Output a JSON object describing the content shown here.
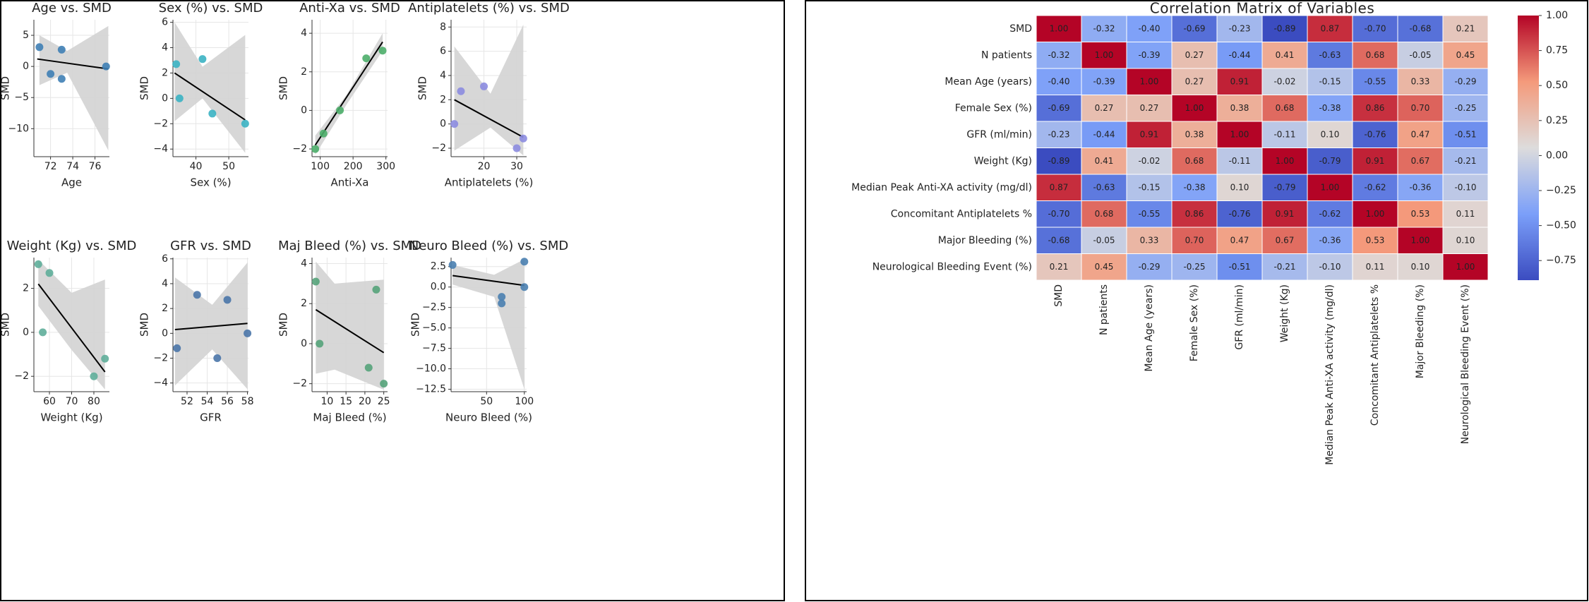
{
  "chart_data": [
    {
      "type": "scatter",
      "title": "Age vs. SMD",
      "x_label": "Age",
      "y_label": "SMD",
      "color": "#3f7fb5",
      "grid": true,
      "x": [
        71,
        72,
        73,
        73,
        77
      ],
      "values": [
        3.1,
        -1.2,
        2.7,
        -2,
        0
      ],
      "xlim": [
        70.5,
        77.3
      ],
      "xticks": [
        72,
        74,
        76
      ],
      "ylim": [
        -14.5,
        7.5
      ],
      "yticks": [
        5,
        0,
        {
          "value": -5,
          "label": "−5"
        },
        {
          "value": -10,
          "label": "−10"
        }
      ],
      "trend": {
        "x": [
          70.8,
          77.2
        ],
        "y": [
          1.2,
          -0.4
        ]
      },
      "band": {
        "x": [
          71,
          73.5,
          77.2
        ],
        "lower": [
          -3,
          -1,
          -13.5
        ],
        "upper": [
          5,
          2.5,
          6.5
        ]
      }
    },
    {
      "type": "scatter",
      "title": "Sex (%) vs. SMD",
      "x_label": "Sex (%)",
      "y_label": "SMD",
      "color": "#3bb3c3",
      "grid": true,
      "x": [
        34,
        35,
        42,
        45,
        55
      ],
      "values": [
        2.7,
        0,
        3.1,
        -1.2,
        -2
      ],
      "xlim": [
        33,
        56
      ],
      "xticks": [
        40,
        50
      ],
      "ylim": [
        -4.6,
        6.2
      ],
      "yticks": [
        {
          "value": -4,
          "label": "−4"
        },
        {
          "value": -2,
          "label": "−2"
        },
        0,
        2,
        4,
        6
      ],
      "trend": {
        "x": [
          33.5,
          55
        ],
        "y": [
          2,
          -1.7
        ]
      },
      "band": {
        "x": [
          33.5,
          42,
          55
        ],
        "lower": [
          -1.8,
          0,
          -4.3
        ],
        "upper": [
          6,
          2.5,
          5
        ]
      }
    },
    {
      "type": "scatter",
      "title": "Anti-Xa vs. SMD",
      "x_label": "Anti-Xa",
      "y_label": "SMD",
      "color": "#4cae6a",
      "grid": true,
      "x": [
        85,
        110,
        160,
        240,
        290
      ],
      "values": [
        -2,
        -1.2,
        0,
        2.7,
        3.1
      ],
      "xlim": [
        75,
        305
      ],
      "xticks": [
        100,
        200,
        300
      ],
      "ylim": [
        -2.4,
        4.7
      ],
      "yticks": [
        {
          "value": -2,
          "label": "−2"
        },
        0,
        2,
        4
      ],
      "trend": {
        "x": [
          85,
          290
        ],
        "y": [
          -1.8,
          3.55
        ]
      },
      "band": {
        "x": [
          85,
          180,
          290
        ],
        "lower": [
          -2.3,
          0.3,
          3.1
        ],
        "upper": [
          -1.3,
          0.8,
          4
        ]
      }
    },
    {
      "type": "scatter",
      "title": "Antiplatelets (%) vs. SMD",
      "x_label": "Antiplatelets (%)",
      "y_label": "SMD",
      "color": "#8c8ce0",
      "grid": true,
      "x": [
        11,
        13,
        20,
        30,
        32
      ],
      "values": [
        0,
        2.7,
        3.1,
        -2,
        -1.2
      ],
      "xlim": [
        10,
        33
      ],
      "xticks": [
        20,
        30
      ],
      "ylim": [
        -2.7,
        8.6
      ],
      "yticks": [
        {
          "value": -2,
          "label": "−2"
        },
        0,
        2,
        4,
        6,
        8
      ],
      "trend": {
        "x": [
          11,
          32
        ],
        "y": [
          2,
          -1.1
        ]
      },
      "band": {
        "x": [
          11,
          22,
          32
        ],
        "lower": [
          -2.2,
          -0.3,
          -2.6
        ],
        "upper": [
          6.4,
          2.5,
          8.2
        ]
      }
    },
    {
      "type": "scatter",
      "title": "Weight (Kg) vs. SMD",
      "x_label": "Weight (Kg)",
      "y_label": "SMD",
      "color": "#5fae9a",
      "grid": true,
      "x": [
        55,
        57,
        60,
        80,
        85
      ],
      "values": [
        3.1,
        0,
        2.7,
        -2,
        -1.2
      ],
      "xlim": [
        53,
        87
      ],
      "xticks": [
        60,
        70,
        80
      ],
      "ylim": [
        -2.7,
        3.4
      ],
      "yticks": [
        {
          "value": -2,
          "label": "−2"
        },
        0,
        2
      ],
      "trend": {
        "x": [
          55,
          85
        ],
        "y": [
          2.2,
          -1.8
        ]
      },
      "band": {
        "x": [
          55,
          70,
          85
        ],
        "lower": [
          1.2,
          -0.8,
          -2.6
        ],
        "upper": [
          3.3,
          1.8,
          2.4
        ]
      }
    },
    {
      "type": "scatter",
      "title": "GFR vs. SMD",
      "x_label": "GFR",
      "y_label": "SMD",
      "color": "#4a76a8",
      "grid": true,
      "x": [
        51,
        53,
        55,
        56,
        58
      ],
      "values": [
        -1.2,
        3.1,
        -2,
        2.7,
        0
      ],
      "xlim": [
        50.6,
        58.1
      ],
      "xticks": [
        52,
        54,
        56,
        58
      ],
      "ylim": [
        -4.7,
        6.1
      ],
      "yticks": [
        {
          "value": -4,
          "label": "−4"
        },
        {
          "value": -2,
          "label": "−2"
        },
        0,
        2,
        4,
        6
      ],
      "trend": {
        "x": [
          50.8,
          58
        ],
        "y": [
          0.3,
          0.8
        ]
      },
      "band": {
        "x": [
          50.8,
          54.5,
          58
        ],
        "lower": [
          -4.2,
          -1.3,
          -4.5
        ],
        "upper": [
          4.5,
          2.3,
          5.7
        ]
      }
    },
    {
      "type": "scatter",
      "title": "Maj Bleed (%) vs. SMD",
      "x_label": "Maj Bleed (%)",
      "y_label": "SMD",
      "color": "#55a37a",
      "grid": true,
      "x": [
        7,
        8,
        21,
        23,
        25
      ],
      "values": [
        3.1,
        0,
        -1.2,
        2.7,
        -2
      ],
      "xlim": [
        6,
        26
      ],
      "xticks": [
        10,
        15,
        20,
        25
      ],
      "ylim": [
        -2.4,
        4.3
      ],
      "yticks": [
        {
          "value": -2,
          "label": "−2"
        },
        0,
        2,
        4
      ],
      "trend": {
        "x": [
          7,
          25
        ],
        "y": [
          1.7,
          -0.45
        ]
      },
      "band": {
        "x": [
          7,
          12,
          25
        ],
        "lower": [
          -1.5,
          -1.3,
          -2.3
        ],
        "upper": [
          4.1,
          3,
          3.2
        ]
      }
    },
    {
      "type": "scatter",
      "title": "Neuro Bleed (%) vs. SMD",
      "x_label": "Neuro Bleed (%)",
      "y_label": "SMD",
      "color": "#4a7fb0",
      "grid": true,
      "x": [
        5,
        70,
        70,
        100,
        100
      ],
      "values": [
        2.7,
        -1.2,
        -2,
        3.1,
        0
      ],
      "xlim": [
        3,
        103
      ],
      "xticks": [
        50,
        100
      ],
      "ylim": [
        -12.8,
        3.6
      ],
      "yticks": [
        2.5,
        {
          "value": 0,
          "label": "0.0"
        },
        {
          "value": -2.5,
          "label": "−2.5"
        },
        {
          "value": -5,
          "label": "−5.0"
        },
        {
          "value": -7.5,
          "label": "−7.5"
        },
        {
          "value": -10,
          "label": "−10.0"
        },
        {
          "value": -12.5,
          "label": "−12.5"
        }
      ],
      "trend": {
        "x": [
          5,
          100
        ],
        "y": [
          1.4,
          0.2
        ]
      },
      "band": {
        "x": [
          5,
          60,
          100
        ],
        "lower": [
          0.3,
          -1.2,
          -12.5
        ],
        "upper": [
          2.7,
          1.5,
          3.4
        ]
      }
    },
    {
      "type": "heatmap",
      "title": "Correlation Matrix of Variables",
      "categories": [
        "SMD",
        "N patients",
        "Mean Age (years)",
        "Female Sex (%)",
        "GFR (ml/min)",
        "Weight (Kg)",
        "Median Peak Anti-XA activity (mg/dl)",
        "Concomitant Antiplatelets %",
        "Major Bleeding (%)",
        "Neurological Bleeding Event (%)"
      ],
      "values": [
        [
          1,
          -0.32,
          -0.4,
          -0.69,
          -0.23,
          -0.89,
          0.87,
          -0.7,
          -0.68,
          0.21
        ],
        [
          -0.32,
          1,
          -0.39,
          0.27,
          -0.44,
          0.41,
          -0.63,
          0.68,
          -0.05,
          0.45
        ],
        [
          -0.4,
          -0.39,
          1,
          0.27,
          0.91,
          -0.02,
          -0.15,
          -0.55,
          0.33,
          -0.29
        ],
        [
          -0.69,
          0.27,
          0.27,
          1,
          0.38,
          0.68,
          -0.38,
          0.86,
          0.7,
          -0.25
        ],
        [
          -0.23,
          -0.44,
          0.91,
          0.38,
          1,
          -0.11,
          0.1,
          -0.76,
          0.47,
          -0.51
        ],
        [
          -0.89,
          0.41,
          -0.02,
          0.68,
          -0.11,
          1,
          -0.79,
          0.91,
          0.67,
          -0.21
        ],
        [
          0.87,
          -0.63,
          -0.15,
          -0.38,
          0.1,
          -0.79,
          1,
          -0.62,
          -0.36,
          -0.1
        ],
        [
          -0.7,
          0.68,
          -0.55,
          0.86,
          -0.76,
          0.91,
          -0.62,
          1,
          0.53,
          0.11
        ],
        [
          -0.68,
          -0.05,
          0.33,
          0.7,
          0.47,
          0.67,
          -0.36,
          0.53,
          1,
          0.1
        ],
        [
          0.21,
          0.45,
          -0.29,
          -0.25,
          -0.51,
          -0.21,
          -0.1,
          0.11,
          0.1,
          1
        ]
      ],
      "value_labels": [
        [
          "1.00",
          "-0.32",
          "-0.40",
          "-0.69",
          "-0.23",
          "-0.89",
          "0.87",
          "-0.70",
          "-0.68",
          "0.21"
        ],
        [
          "-0.32",
          "1.00",
          "-0.39",
          "0.27",
          "-0.44",
          "0.41",
          "-0.63",
          "0.68",
          "-0.05",
          "0.45"
        ],
        [
          "-0.40",
          "-0.39",
          "1.00",
          "0.27",
          "0.91",
          "-0.02",
          "-0.15",
          "-0.55",
          "0.33",
          "-0.29"
        ],
        [
          "-0.69",
          "0.27",
          "0.27",
          "1.00",
          "0.38",
          "0.68",
          "-0.38",
          "0.86",
          "0.70",
          "-0.25"
        ],
        [
          "-0.23",
          "-0.44",
          "0.91",
          "0.38",
          "1.00",
          "-0.11",
          "0.10",
          "-0.76",
          "0.47",
          "-0.51"
        ],
        [
          "-0.89",
          "0.41",
          "-0.02",
          "0.68",
          "-0.11",
          "1.00",
          "-0.79",
          "0.91",
          "0.67",
          "-0.21"
        ],
        [
          "0.87",
          "-0.63",
          "-0.15",
          "-0.38",
          "0.10",
          "-0.79",
          "1.00",
          "-0.62",
          "-0.36",
          "-0.10"
        ],
        [
          "-0.70",
          "0.68",
          "-0.55",
          "0.86",
          "-0.76",
          "0.91",
          "-0.62",
          "1.00",
          "0.53",
          "0.11"
        ],
        [
          "-0.68",
          "-0.05",
          "0.33",
          "0.70",
          "0.47",
          "0.67",
          "-0.36",
          "0.53",
          "1.00",
          "0.10"
        ],
        [
          "0.21",
          "0.45",
          "-0.29",
          "-0.25",
          "-0.51",
          "-0.21",
          "-0.10",
          "0.11",
          "0.10",
          "1.00"
        ]
      ],
      "colormap": [
        "#3b4cc0",
        "#7b9ff9",
        "#dddcdc",
        "#f49a7b",
        "#b40426"
      ],
      "zlim": [
        -0.89,
        1
      ],
      "colorbar_ticks": [
        {
          "value": 1,
          "label": "1.00"
        },
        {
          "value": 0.75,
          "label": "0.75"
        },
        {
          "value": 0.5,
          "label": "0.50"
        },
        {
          "value": 0.25,
          "label": "0.25"
        },
        {
          "value": 0,
          "label": "0.00"
        },
        {
          "value": -0.25,
          "label": "−0.25"
        },
        {
          "value": -0.5,
          "label": "−0.50"
        },
        {
          "value": -0.75,
          "label": "−0.75"
        }
      ]
    }
  ]
}
